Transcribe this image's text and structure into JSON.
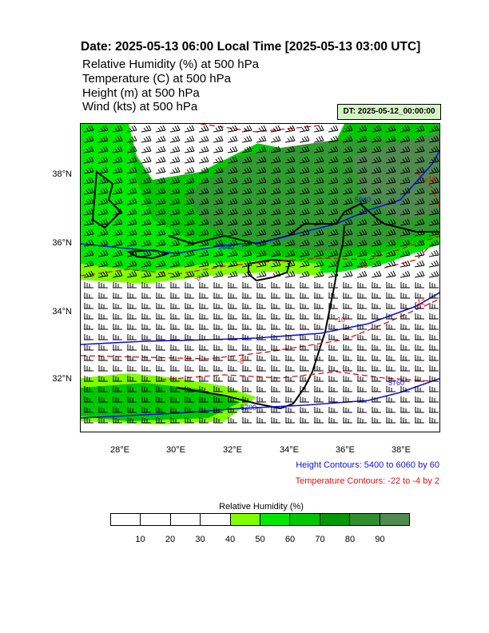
{
  "title": "Date: 2025-05-13  06:00 Local Time [2025-05-13  03:00 UTC]",
  "header_lines": [
    "Relative Humidity   (%)     at   500 hPa",
    "Temperature   (C)     at   500 hPa",
    "Height   (m)     at   500 hPa",
    "Wind   (kts)     at   500 hPa"
  ],
  "dt_label": "DT: 2025-05-12_00:00:00",
  "map": {
    "lat_labels": [
      "38°N",
      "36°N",
      "34°N",
      "32°N"
    ],
    "lon_labels": [
      "28°E",
      "30°E",
      "32°E",
      "34°E",
      "36°E",
      "38°E"
    ],
    "height_contour_labels": [
      "5940",
      "5640",
      "5760",
      "5700"
    ],
    "temp_contour_labels": [
      "-6",
      "-8",
      "-10",
      "-12",
      "-16",
      "-18"
    ],
    "colors": {
      "coast": "#000000",
      "height_contour": "#1010e0",
      "temp_contour": "#e01010",
      "barb": "#000000"
    }
  },
  "legend": {
    "height_contours": "Height Contours: 5400 to 6060 by 60",
    "temperature_contours": "Temperature Contours: -22 to -4 by 2"
  },
  "colorbar": {
    "title": "Relative Humidity  (%)",
    "labels": [
      "10",
      "20",
      "30",
      "40",
      "50",
      "60",
      "70",
      "80",
      "90"
    ],
    "colors": [
      "#ffffff",
      "#ffffff",
      "#ffffff",
      "#ffffff",
      "#7fff00",
      "#00e800",
      "#00c800",
      "#009a00",
      "#2f8f2f",
      "#4f8a4f"
    ]
  }
}
